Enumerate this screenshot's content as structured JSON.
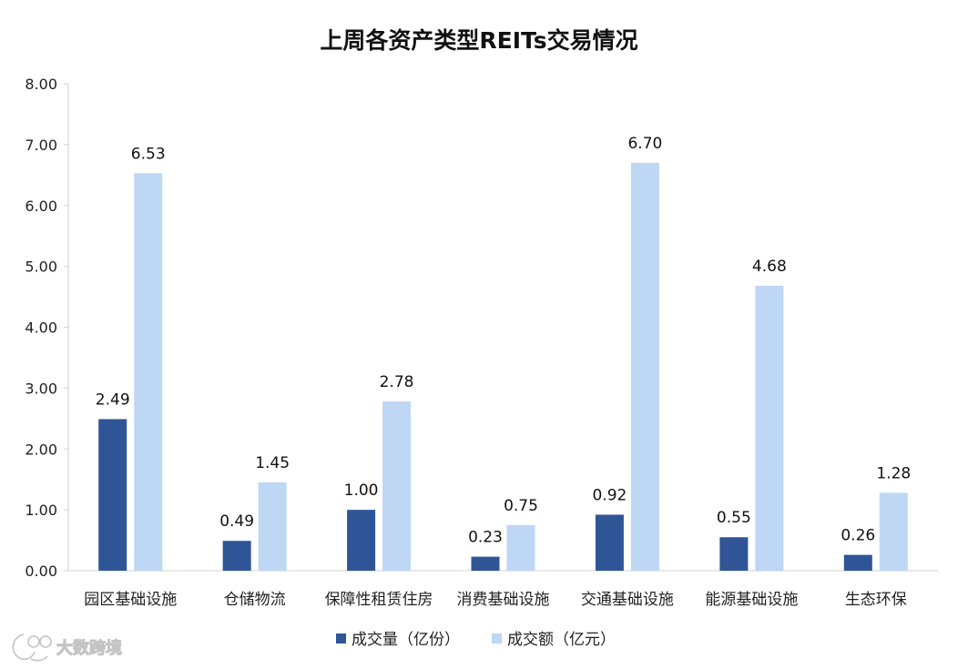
{
  "chart_data": {
    "type": "bar",
    "title": "上周各资产类型REITs交易情况",
    "categories": [
      "园区基础设施",
      "仓储物流",
      "保障性租赁住房",
      "消费基础设施",
      "交通基础设施",
      "能源基础设施",
      "生态环保"
    ],
    "series": [
      {
        "name": "成交量（亿份）",
        "color": "#2f5597",
        "values": [
          2.49,
          0.49,
          1.0,
          0.23,
          0.92,
          0.55,
          0.26
        ],
        "labels": [
          "2.49",
          "0.49",
          "1.00",
          "0.23",
          "0.92",
          "0.55",
          "0.26"
        ]
      },
      {
        "name": "成交额（亿元）",
        "color": "#bdd7f5",
        "values": [
          6.53,
          1.45,
          2.78,
          0.75,
          6.7,
          4.68,
          1.28
        ],
        "labels": [
          "6.53",
          "1.45",
          "2.78",
          "0.75",
          "6.70",
          "4.68",
          "1.28"
        ]
      }
    ],
    "y_ticks": [
      "0.00",
      "1.00",
      "2.00",
      "3.00",
      "4.00",
      "5.00",
      "6.00",
      "7.00",
      "8.00"
    ],
    "ylim": [
      0,
      8
    ],
    "grid": false,
    "legend_position": "bottom"
  },
  "watermark": {
    "text": "大数跨境"
  }
}
